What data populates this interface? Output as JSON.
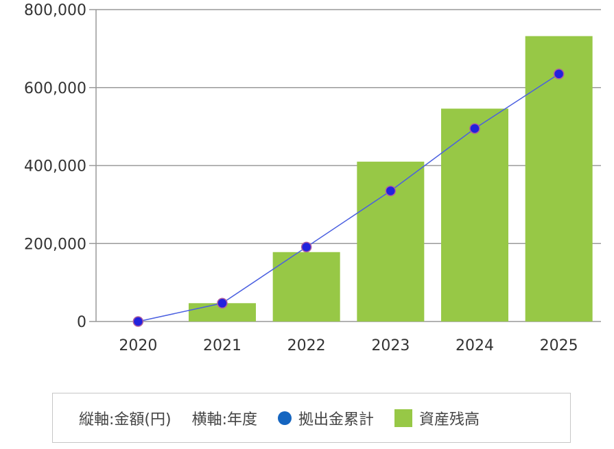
{
  "chart_data": {
    "type": "bar",
    "categories": [
      "2020",
      "2021",
      "2022",
      "2023",
      "2024",
      "2025"
    ],
    "series": [
      {
        "name": "資産残高",
        "type": "bar",
        "values": [
          0,
          47000,
          178000,
          410000,
          546000,
          732000
        ]
      },
      {
        "name": "拠出金累計",
        "type": "line",
        "values": [
          0,
          47000,
          191000,
          335000,
          495000,
          635000
        ]
      }
    ],
    "yticks": [
      "0",
      "200,000",
      "400,000",
      "600,000",
      "800,000"
    ],
    "ylim": [
      0,
      800000
    ],
    "grid": true
  },
  "legend": {
    "y_axis_note": "縦軸:金額(円)",
    "x_axis_note": "横軸:年度",
    "line_label": "拠出金累計",
    "bar_label": "資産残高"
  },
  "colors": {
    "bar": "#97c846",
    "line": "#4a5fe0",
    "marker_fill": "#2222dd",
    "marker_stroke": "#b05fa0",
    "legend_dot": "#1565c0",
    "grid": "#999999"
  }
}
